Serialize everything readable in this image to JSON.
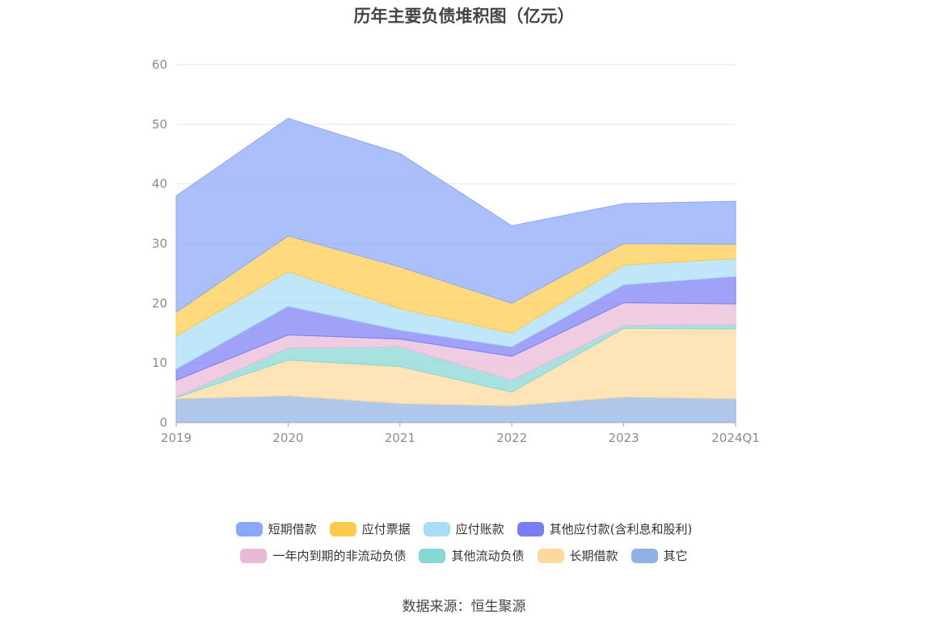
{
  "chart_data": {
    "type": "area",
    "stacked": true,
    "title": "历年主要负债堆积图（亿元）",
    "x": [
      "2019",
      "2020",
      "2021",
      "2022",
      "2023",
      "2024Q1"
    ],
    "y_ticks": [
      "0",
      "10",
      "20",
      "30",
      "40",
      "50",
      "60"
    ],
    "ylim": [
      0,
      60
    ],
    "grid": true,
    "legend_position": "bottom",
    "series": [
      {
        "name": "其它",
        "color": "#8fb1e3",
        "values": [
          4.0,
          4.5,
          3.2,
          2.8,
          4.3,
          4.0
        ]
      },
      {
        "name": "长期借款",
        "color": "#fdd99b",
        "values": [
          0.2,
          6.0,
          6.2,
          2.3,
          11.5,
          11.7
        ]
      },
      {
        "name": "其他流动负债",
        "color": "#87d7d4",
        "values": [
          0.1,
          2.0,
          3.3,
          2.0,
          0.5,
          0.7
        ]
      },
      {
        "name": "一年内到期的非流动负债",
        "color": "#eab8d8",
        "values": [
          2.8,
          2.2,
          1.3,
          4.0,
          3.8,
          3.5
        ]
      },
      {
        "name": "其他应付款(含利息和股利)",
        "color": "#7a7ef2",
        "values": [
          1.9,
          4.8,
          1.5,
          1.6,
          3.0,
          4.6
        ]
      },
      {
        "name": "应付账款",
        "color": "#a8dcf7",
        "values": [
          5.5,
          5.8,
          3.6,
          2.3,
          3.3,
          3.0
        ]
      },
      {
        "name": "应付票据",
        "color": "#fdcb4c",
        "values": [
          4.0,
          6.0,
          7.0,
          5.0,
          3.6,
          2.4
        ]
      },
      {
        "name": "短期借款",
        "color": "#8aa8f9",
        "values": [
          19.5,
          19.7,
          19.0,
          13.0,
          6.7,
          7.2
        ]
      }
    ]
  },
  "legend_rows": [
    [
      {
        "label": "短期借款",
        "color": "#8aa8f9"
      },
      {
        "label": "应付票据",
        "color": "#fdcb4c"
      },
      {
        "label": "应付账款",
        "color": "#a8dcf7"
      },
      {
        "label": "其他应付款(含利息和股利)",
        "color": "#7a7ef2"
      }
    ],
    [
      {
        "label": "一年内到期的非流动负债",
        "color": "#eab8d8"
      },
      {
        "label": "其他流动负债",
        "color": "#87d7d4"
      },
      {
        "label": "长期借款",
        "color": "#fdd99b"
      },
      {
        "label": "其它",
        "color": "#8fb1e3"
      }
    ]
  ],
  "source": "数据来源：恒生聚源"
}
